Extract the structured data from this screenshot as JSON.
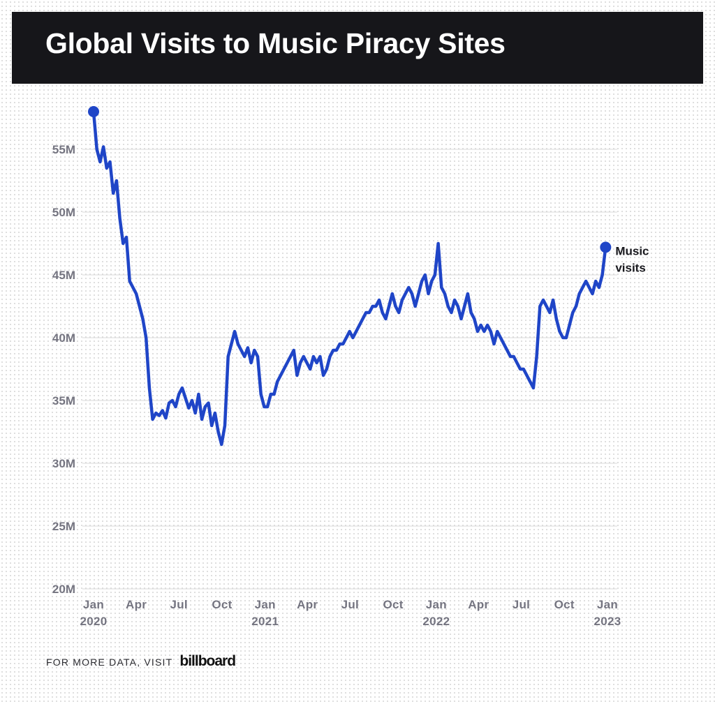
{
  "header": {
    "title": "Global Visits to Music Piracy Sites"
  },
  "footer": {
    "text": "FOR MORE DATA, VISIT",
    "logo": "billboard"
  },
  "colors": {
    "series": "#1f45c7",
    "header_bg": "#16161a",
    "grid": "#d9d9d9",
    "tick_text": "#747480"
  },
  "chart_data": {
    "type": "line",
    "title": "Global Visits to Music Piracy Sites",
    "xlabel": "",
    "ylabel": "",
    "ylim": [
      20,
      60
    ],
    "y_unit": "M",
    "y_ticks": [
      "20M",
      "25M",
      "30M",
      "35M",
      "40M",
      "45M",
      "50M",
      "55M"
    ],
    "x_range": [
      "2020-01-01",
      "2023-01-01"
    ],
    "x_ticks": [
      {
        "date": "2020-01-01",
        "label": "Jan",
        "year": "2020"
      },
      {
        "date": "2020-04-01",
        "label": "Apr",
        "year": ""
      },
      {
        "date": "2020-07-01",
        "label": "Jul",
        "year": ""
      },
      {
        "date": "2020-10-01",
        "label": "Oct",
        "year": ""
      },
      {
        "date": "2021-01-01",
        "label": "Jan",
        "year": "2021"
      },
      {
        "date": "2021-04-01",
        "label": "Apr",
        "year": ""
      },
      {
        "date": "2021-07-01",
        "label": "Jul",
        "year": ""
      },
      {
        "date": "2021-10-01",
        "label": "Oct",
        "year": ""
      },
      {
        "date": "2022-01-01",
        "label": "Jan",
        "year": "2022"
      },
      {
        "date": "2022-04-01",
        "label": "Apr",
        "year": ""
      },
      {
        "date": "2022-07-01",
        "label": "Jul",
        "year": ""
      },
      {
        "date": "2022-10-01",
        "label": "Oct",
        "year": ""
      },
      {
        "date": "2023-01-01",
        "label": "Jan",
        "year": "2023"
      }
    ],
    "grid": true,
    "legend": "none",
    "series": [
      {
        "name": "Music visits",
        "label_lines": [
          "Music",
          "visits"
        ],
        "x": [
          "2020-01-01",
          "2020-01-08",
          "2020-01-15",
          "2020-01-22",
          "2020-01-29",
          "2020-02-05",
          "2020-02-12",
          "2020-02-19",
          "2020-02-26",
          "2020-03-04",
          "2020-03-11",
          "2020-03-18",
          "2020-03-25",
          "2020-04-01",
          "2020-04-08",
          "2020-04-15",
          "2020-04-22",
          "2020-04-29",
          "2020-05-06",
          "2020-05-13",
          "2020-05-20",
          "2020-05-27",
          "2020-06-03",
          "2020-06-10",
          "2020-06-17",
          "2020-06-24",
          "2020-07-01",
          "2020-07-08",
          "2020-07-15",
          "2020-07-22",
          "2020-07-29",
          "2020-08-05",
          "2020-08-12",
          "2020-08-19",
          "2020-08-26",
          "2020-09-02",
          "2020-09-09",
          "2020-09-16",
          "2020-09-23",
          "2020-09-30",
          "2020-10-07",
          "2020-10-14",
          "2020-10-21",
          "2020-10-28",
          "2020-11-04",
          "2020-11-11",
          "2020-11-18",
          "2020-11-25",
          "2020-12-02",
          "2020-12-09",
          "2020-12-16",
          "2020-12-23",
          "2020-12-30",
          "2021-01-06",
          "2021-01-13",
          "2021-01-20",
          "2021-01-27",
          "2021-02-03",
          "2021-02-10",
          "2021-02-17",
          "2021-02-24",
          "2021-03-03",
          "2021-03-10",
          "2021-03-17",
          "2021-03-24",
          "2021-03-31",
          "2021-04-07",
          "2021-04-14",
          "2021-04-21",
          "2021-04-28",
          "2021-05-05",
          "2021-05-12",
          "2021-05-19",
          "2021-05-26",
          "2021-06-02",
          "2021-06-09",
          "2021-06-16",
          "2021-06-23",
          "2021-06-30",
          "2021-07-07",
          "2021-07-14",
          "2021-07-21",
          "2021-07-28",
          "2021-08-04",
          "2021-08-11",
          "2021-08-18",
          "2021-08-25",
          "2021-09-01",
          "2021-09-08",
          "2021-09-15",
          "2021-09-22",
          "2021-09-29",
          "2021-10-06",
          "2021-10-13",
          "2021-10-20",
          "2021-10-27",
          "2021-11-03",
          "2021-11-10",
          "2021-11-17",
          "2021-11-24",
          "2021-12-01",
          "2021-12-08",
          "2021-12-15",
          "2021-12-22",
          "2021-12-29",
          "2022-01-05",
          "2022-01-12",
          "2022-01-19",
          "2022-01-26",
          "2022-02-02",
          "2022-02-09",
          "2022-02-16",
          "2022-02-23",
          "2022-03-02",
          "2022-03-09",
          "2022-03-16",
          "2022-03-23",
          "2022-03-30",
          "2022-04-06",
          "2022-04-13",
          "2022-04-20",
          "2022-04-27",
          "2022-05-04",
          "2022-05-11",
          "2022-05-18",
          "2022-05-25",
          "2022-06-01",
          "2022-06-08",
          "2022-06-15",
          "2022-06-22",
          "2022-06-29",
          "2022-07-06",
          "2022-07-13",
          "2022-07-20",
          "2022-07-27",
          "2022-08-03",
          "2022-08-10",
          "2022-08-17",
          "2022-08-24",
          "2022-08-31",
          "2022-09-07",
          "2022-09-14",
          "2022-09-21",
          "2022-09-28",
          "2022-10-05",
          "2022-10-12",
          "2022-10-19",
          "2022-10-26",
          "2022-11-02",
          "2022-11-09",
          "2022-11-16",
          "2022-11-23",
          "2022-11-30",
          "2022-12-07",
          "2022-12-14",
          "2022-12-21",
          "2022-12-28"
        ],
        "y": [
          58.0,
          55.0,
          54.0,
          55.2,
          53.5,
          54.0,
          51.5,
          52.5,
          49.5,
          47.5,
          48.0,
          44.5,
          44.0,
          43.5,
          42.5,
          41.5,
          40.0,
          36.0,
          33.5,
          34.0,
          33.8,
          34.2,
          33.6,
          34.8,
          35.0,
          34.5,
          35.5,
          36.0,
          35.2,
          34.4,
          35.0,
          34.0,
          35.5,
          33.5,
          34.5,
          34.8,
          33.0,
          34.0,
          32.5,
          31.5,
          33.0,
          38.5,
          39.5,
          40.5,
          39.5,
          39.0,
          38.5,
          39.2,
          38.0,
          39.0,
          38.5,
          35.5,
          34.5,
          34.5,
          35.5,
          35.5,
          36.5,
          37.0,
          37.5,
          38.0,
          38.5,
          39.0,
          37.0,
          38.0,
          38.5,
          38.0,
          37.5,
          38.5,
          38.0,
          38.5,
          37.0,
          37.5,
          38.5,
          39.0,
          39.0,
          39.5,
          39.5,
          40.0,
          40.5,
          40.0,
          40.5,
          41.0,
          41.5,
          42.0,
          42.0,
          42.5,
          42.5,
          43.0,
          42.0,
          41.5,
          42.5,
          43.5,
          42.5,
          42.0,
          43.0,
          43.5,
          44.0,
          43.5,
          42.5,
          43.5,
          44.5,
          45.0,
          43.5,
          44.5,
          45.0,
          47.5,
          44.0,
          43.5,
          42.5,
          42.0,
          43.0,
          42.5,
          41.5,
          42.5,
          43.5,
          42.0,
          41.5,
          40.5,
          41.0,
          40.5,
          41.0,
          40.5,
          39.5,
          40.5,
          40.0,
          39.5,
          39.0,
          38.5,
          38.5,
          38.0,
          37.5,
          37.5,
          37.0,
          36.5,
          36.0,
          38.5,
          42.5,
          43.0,
          42.5,
          42.0,
          43.0,
          41.5,
          40.5,
          40.0,
          40.0,
          41.0,
          42.0,
          42.5,
          43.5,
          44.0,
          44.5,
          44.0,
          43.5,
          44.5,
          44.0,
          45.0,
          47.2
        ]
      }
    ]
  }
}
